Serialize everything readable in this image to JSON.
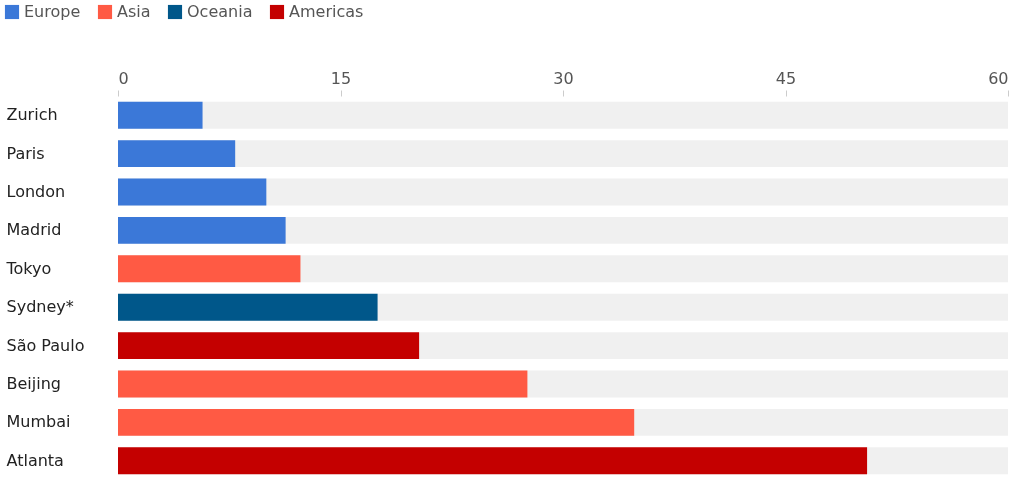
{
  "chart_data": {
    "type": "bar",
    "orientation": "horizontal",
    "categories": [
      "Zurich",
      "Paris",
      "London",
      "Madrid",
      "Tokyo",
      "Sydney*",
      "São Paulo",
      "Beijing",
      "Mumbai",
      "Atlanta"
    ],
    "series": [
      {
        "name": "Europe",
        "color": "#3b78d8",
        "values": [
          5.7,
          7.9,
          10.0,
          11.3,
          null,
          null,
          null,
          null,
          null,
          null
        ]
      },
      {
        "name": "Asia",
        "color": "#ff5a44",
        "values": [
          null,
          null,
          null,
          null,
          12.3,
          null,
          null,
          27.6,
          34.8,
          null
        ]
      },
      {
        "name": "Oceania",
        "color": "#00578a",
        "values": [
          null,
          null,
          null,
          null,
          null,
          17.5,
          null,
          null,
          null,
          null
        ]
      },
      {
        "name": "Americas",
        "color": "#c40000",
        "values": [
          null,
          null,
          null,
          null,
          null,
          null,
          20.3,
          null,
          null,
          50.5
        ]
      }
    ],
    "xlim": [
      0,
      60
    ],
    "xticks": [
      0,
      15,
      30,
      45,
      60
    ],
    "grid": false,
    "legend": "top left"
  }
}
